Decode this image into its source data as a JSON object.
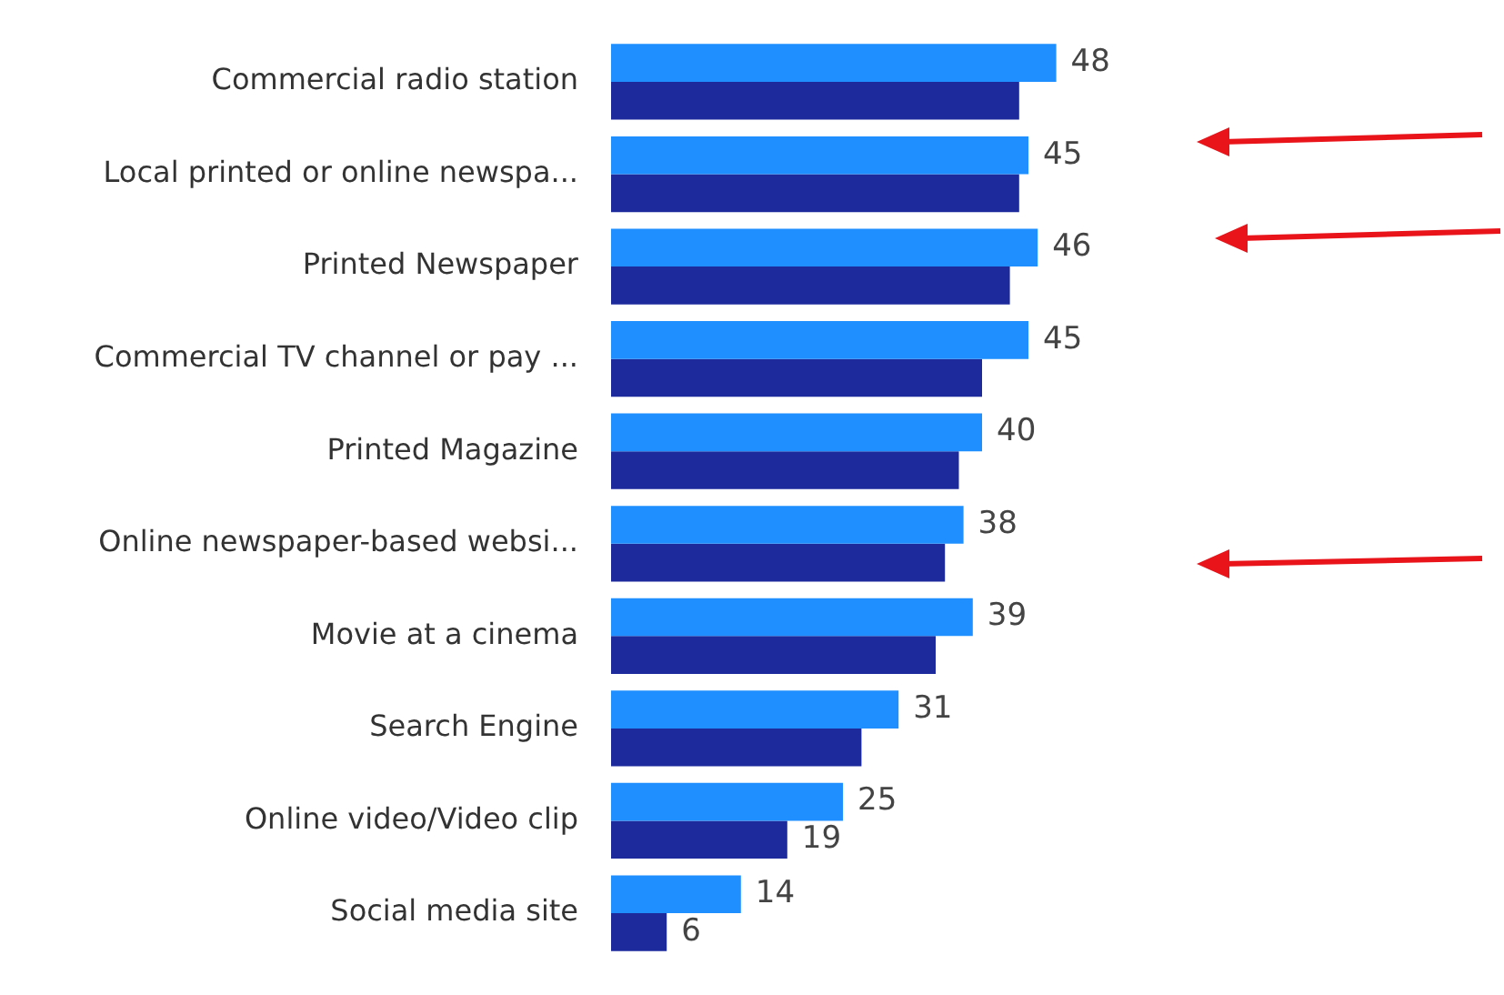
{
  "chart_data": {
    "type": "bar",
    "orientation": "horizontal",
    "legend": false,
    "tick_labels": "y",
    "categories": [
      "Commercial radio station",
      "Local printed or online newspa...",
      "Printed Newspaper",
      "Commercial TV channel or pay ...",
      "Printed Magazine",
      "Online newspaper-based websi...",
      "Movie at a cinema",
      "Search Engine",
      "Online video/Video clip",
      "Social media site"
    ],
    "series": [
      {
        "color": "#1f8fff",
        "values": [
          48,
          45,
          46,
          45,
          40,
          38,
          39,
          31,
          25,
          14
        ],
        "value_labels": [
          "48",
          "45",
          "46",
          "45",
          "40",
          "38",
          "39",
          "31",
          "25",
          "14"
        ]
      },
      {
        "color": "#1c2a9c",
        "values": [
          44,
          44,
          43,
          40,
          37.5,
          36,
          35,
          27,
          19,
          6
        ],
        "value_labels": [
          null,
          null,
          null,
          null,
          null,
          null,
          null,
          null,
          "19",
          "6"
        ]
      }
    ]
  }
}
